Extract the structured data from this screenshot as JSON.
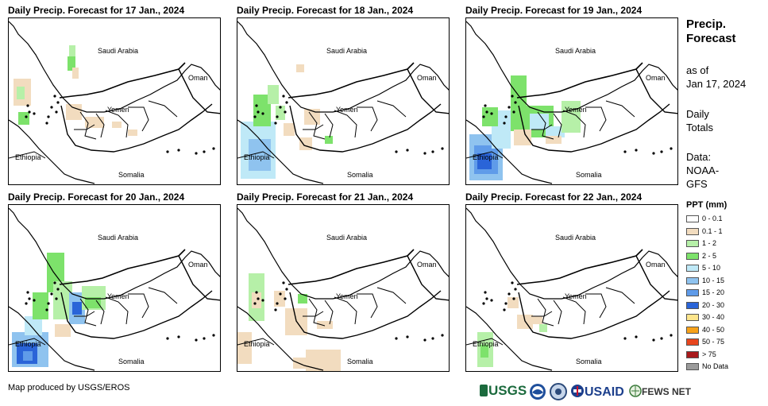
{
  "panels": [
    {
      "title": "Daily Precip. Forecast for 17 Jan., 2024",
      "saudi": "Saudi Arabia",
      "oman": "Oman",
      "yemen": "Yemen",
      "ethiopia": "Ethiopia",
      "somalia": "Somalia"
    },
    {
      "title": "Daily Precip. Forecast for 18 Jan., 2024",
      "saudi": "Saudi Arabia",
      "oman": "Oman",
      "yemen": "Yemen",
      "ethiopia": "Ethiopia",
      "somalia": "Somalia"
    },
    {
      "title": "Daily Precip. Forecast for 19 Jan., 2024",
      "saudi": "Saudi Arabia",
      "oman": "Oman",
      "yemen": "Yemen",
      "ethiopia": "Ethiopia",
      "somalia": "Somalia"
    },
    {
      "title": "Daily Precip. Forecast for 20 Jan., 2024",
      "saudi": "Saudi Arabia",
      "oman": "Oman",
      "yemen": "Yemen",
      "ethiopia": "Ethiopia",
      "somalia": "Somalia"
    },
    {
      "title": "Daily Precip. Forecast for 21 Jan., 2024",
      "saudi": "Saudi Arabia",
      "oman": "Oman",
      "yemen": "Yemen",
      "ethiopia": "Ethiopia",
      "somalia": "Somalia"
    },
    {
      "title": "Daily Precip. Forecast for 22 Jan., 2024",
      "saudi": "Saudi Arabia",
      "oman": "Oman",
      "yemen": "Yemen",
      "ethiopia": "Ethiopia",
      "somalia": "Somalia"
    }
  ],
  "sidebar": {
    "title_line1": "Precip.",
    "title_line2": "Forecast",
    "asof_line1": "as of",
    "asof_line2": "Jan 17, 2024",
    "daily_line1": "Daily",
    "daily_line2": "Totals",
    "data_line1": "Data:",
    "data_line2": "NOAA-",
    "data_line3": "GFS"
  },
  "legend": {
    "title": "PPT (mm)",
    "items": [
      {
        "label": "0 - 0.1",
        "color": "#ffffff"
      },
      {
        "label": "0.1 - 1",
        "color": "#f2dcbf"
      },
      {
        "label": "1 - 2",
        "color": "#b6f0a8"
      },
      {
        "label": "2 - 5",
        "color": "#7de26b"
      },
      {
        "label": "5 - 10",
        "color": "#bfe9f7"
      },
      {
        "label": "10 - 15",
        "color": "#8fc3ef"
      },
      {
        "label": "15 - 20",
        "color": "#5f9be9"
      },
      {
        "label": "20 - 30",
        "color": "#2a64d8"
      },
      {
        "label": "30 - 40",
        "color": "#fde58c"
      },
      {
        "label": "40 - 50",
        "color": "#f7a21a"
      },
      {
        "label": "50 - 75",
        "color": "#e8461e"
      },
      {
        "label": "> 75",
        "color": "#a8191b"
      },
      {
        "label": "No Data",
        "color": "#9b9b9b"
      }
    ]
  },
  "footer": {
    "credit": "Map produced by USGS/EROS"
  },
  "logos": {
    "usgs": "USGS",
    "usaid": "USAID",
    "fewsnet": "FEWS NET"
  }
}
